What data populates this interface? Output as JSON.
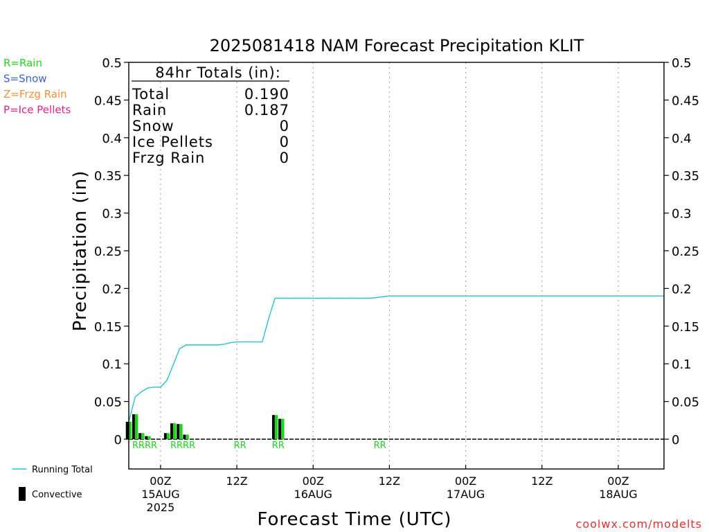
{
  "chart_data": {
    "type": "line",
    "title": "2025081418 NAM Forecast Precipitation KLIT",
    "xlabel": "Forecast Time (UTC)",
    "ylabel": "Precipitation (in)",
    "ylim": [
      0,
      0.5
    ],
    "yticks": [
      "0",
      "0.05",
      "0.1",
      "0.15",
      "0.2",
      "0.25",
      "0.3",
      "0.35",
      "0.4",
      "0.45",
      "0.5"
    ],
    "x_ticks": [
      {
        "hour": 6,
        "lines": [
          "00Z",
          "15AUG",
          "2025"
        ]
      },
      {
        "hour": 18,
        "lines": [
          "12Z"
        ]
      },
      {
        "hour": 30,
        "lines": [
          "00Z",
          "16AUG"
        ]
      },
      {
        "hour": 42,
        "lines": [
          "12Z"
        ]
      },
      {
        "hour": 54,
        "lines": [
          "00Z",
          "17AUG"
        ]
      },
      {
        "hour": 66,
        "lines": [
          "12Z"
        ]
      },
      {
        "hour": 78,
        "lines": [
          "00Z",
          "18AUG"
        ]
      }
    ],
    "running_total": {
      "name": "Running Total",
      "color": "#22c4c8",
      "hours": [
        1,
        2,
        3,
        4,
        5,
        6,
        7,
        8,
        9,
        10,
        11,
        12,
        13,
        14,
        15,
        16,
        17,
        18,
        19,
        20,
        21,
        22,
        23,
        24,
        25,
        26,
        27,
        28,
        29,
        30,
        33,
        36,
        39,
        42,
        45,
        48,
        51,
        54,
        57,
        60,
        63,
        66,
        69,
        72,
        75,
        78,
        81,
        84
      ],
      "values": [
        0.023,
        0.056,
        0.063,
        0.068,
        0.069,
        0.069,
        0.078,
        0.099,
        0.12,
        0.125,
        0.125,
        0.125,
        0.125,
        0.125,
        0.125,
        0.126,
        0.128,
        0.129,
        0.129,
        0.129,
        0.129,
        0.129,
        0.16,
        0.187,
        0.187,
        0.187,
        0.187,
        0.187,
        0.187,
        0.187,
        0.187,
        0.187,
        0.187,
        0.19,
        0.19,
        0.19,
        0.19,
        0.19,
        0.19,
        0.19,
        0.19,
        0.19,
        0.19,
        0.19,
        0.19,
        0.19,
        0.19,
        0.19
      ]
    },
    "hourly_bars": {
      "total_color": "#22d222",
      "convective_color": "#000000",
      "hours": [
        1,
        2,
        3,
        4,
        7,
        8,
        9,
        10,
        24,
        25
      ],
      "total": [
        0.023,
        0.033,
        0.008,
        0.004,
        0.008,
        0.021,
        0.02,
        0.006,
        0.032,
        0.027
      ],
      "convective": [
        0.016,
        0.025,
        0.004,
        0.002,
        0.005,
        0.013,
        0.012,
        0.003,
        0.021,
        0.018
      ]
    },
    "ptype_labels": [
      {
        "text": "RRRR",
        "hour": 3.5
      },
      {
        "text": "RRRR",
        "hour": 9.5
      },
      {
        "text": "RR",
        "hour": 18.5
      },
      {
        "text": "RR",
        "hour": 24.5
      },
      {
        "text": "RR",
        "hour": 40.5
      }
    ],
    "totals_box": {
      "heading": "84hr Totals (in):",
      "rows": [
        {
          "label": "Total",
          "value": "0.190"
        },
        {
          "label": "Rain",
          "value": "0.187"
        },
        {
          "label": "Snow",
          "value": "0"
        },
        {
          "label": "Ice Pellets",
          "value": "0"
        },
        {
          "label": "Frzg Rain",
          "value": "0"
        }
      ]
    },
    "ptype_legend": [
      {
        "text": "R=Rain",
        "color": "#22d222"
      },
      {
        "text": "S=Snow",
        "color": "#3b5fe0"
      },
      {
        "text": "Z=Frzg Rain",
        "color": "#f0903a"
      },
      {
        "text": "P=Ice Pellets",
        "color": "#e0208e"
      }
    ],
    "legend": {
      "running_total_label": "Running Total",
      "convective_label": "Convective"
    },
    "footer": "coolwx.com/modelts",
    "footer_color": "#e03030"
  }
}
